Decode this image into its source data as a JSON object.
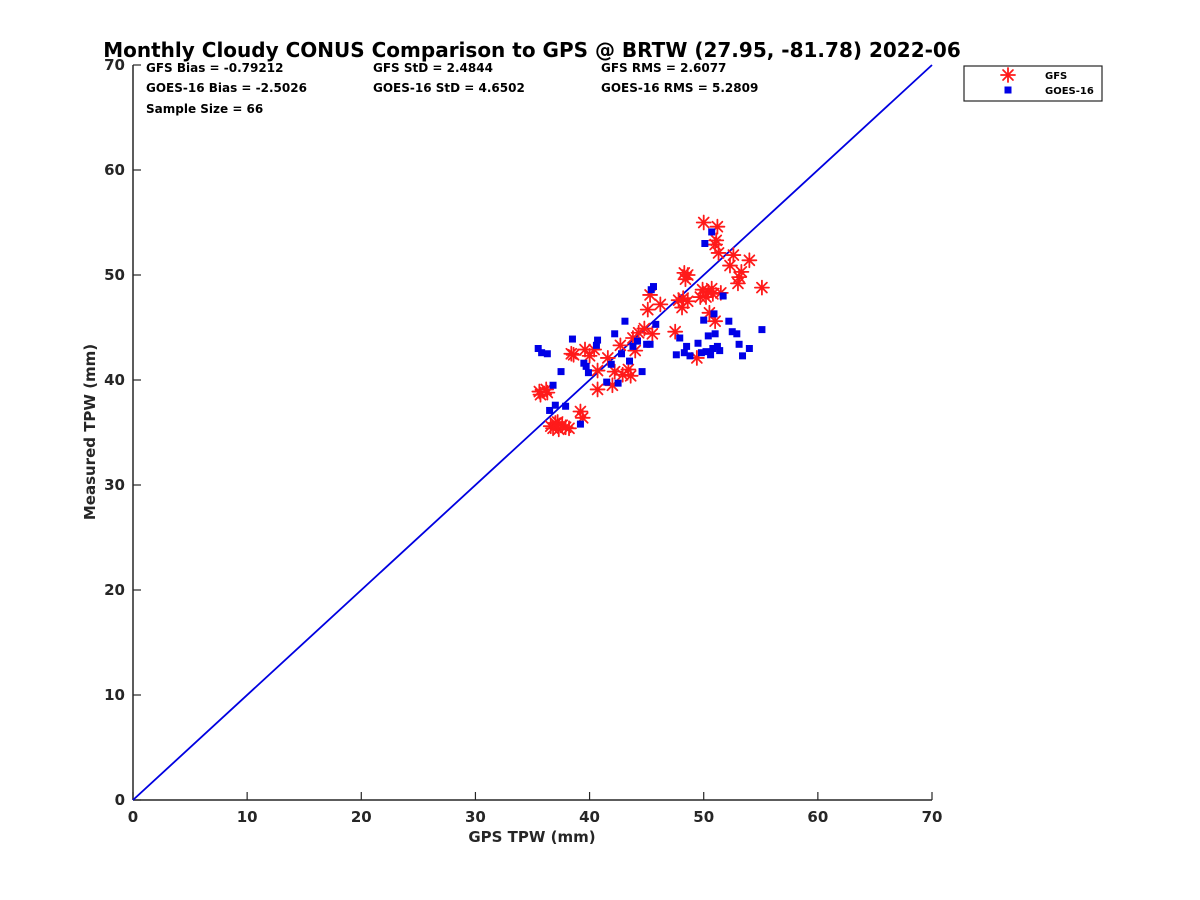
{
  "chart_data": {
    "type": "scatter",
    "title": "Monthly Cloudy CONUS Comparison to GPS @ BRTW (27.95, -81.78) 2022-06",
    "xlabel": "GPS TPW (mm)",
    "ylabel": "Measured TPW (mm)",
    "xlim": [
      0,
      70
    ],
    "ylim": [
      0,
      70
    ],
    "xticks": [
      "0",
      "10",
      "20",
      "30",
      "40",
      "50",
      "60",
      "70"
    ],
    "yticks": [
      "0",
      "10",
      "20",
      "30",
      "40",
      "50",
      "60",
      "70"
    ],
    "stats": {
      "gfs_bias": "GFS Bias = -0.79212",
      "gfs_std": "GFS StD = 2.4844",
      "gfs_rms": "GFS RMS = 2.6077",
      "goes_bias": "GOES-16 Bias = -2.5026",
      "goes_std": "GOES-16 StD = 4.6502",
      "goes_rms": "GOES-16 RMS = 5.2809",
      "sample_size": "Sample Size = 66"
    },
    "reference_line": {
      "name": "1:1",
      "x": [
        0,
        70
      ],
      "y": [
        0,
        70
      ],
      "color": "#0000e0"
    },
    "legend": {
      "placement": "outside-top-right",
      "entries": [
        "GFS",
        "GOES-16"
      ]
    },
    "series": [
      {
        "name": "GFS",
        "marker": "asterisk",
        "color": "#ff1a1a",
        "points": [
          [
            35.6,
            38.9
          ],
          [
            35.7,
            38.6
          ],
          [
            36.2,
            39.1
          ],
          [
            36.6,
            35.6
          ],
          [
            36.8,
            35.4
          ],
          [
            37.0,
            35.9
          ],
          [
            37.3,
            35.3
          ],
          [
            37.6,
            35.7
          ],
          [
            37.9,
            35.5
          ],
          [
            38.2,
            35.4
          ],
          [
            39.2,
            37.0
          ],
          [
            39.4,
            36.4
          ],
          [
            38.6,
            42.4
          ],
          [
            39.6,
            42.9
          ],
          [
            40.0,
            42.3
          ],
          [
            40.4,
            42.9
          ],
          [
            40.7,
            40.9
          ],
          [
            40.7,
            39.1
          ],
          [
            41.6,
            42.1
          ],
          [
            42.0,
            39.5
          ],
          [
            42.2,
            40.8
          ],
          [
            42.7,
            43.3
          ],
          [
            42.9,
            40.5
          ],
          [
            43.4,
            41.0
          ],
          [
            43.6,
            40.4
          ],
          [
            43.8,
            44.0
          ],
          [
            44.3,
            44.5
          ],
          [
            44.8,
            44.9
          ],
          [
            45.1,
            46.7
          ],
          [
            45.3,
            48.1
          ],
          [
            45.5,
            44.4
          ],
          [
            47.5,
            44.6
          ],
          [
            47.8,
            47.6
          ],
          [
            48.1,
            46.9
          ],
          [
            48.3,
            50.2
          ],
          [
            48.4,
            49.6
          ],
          [
            48.6,
            50.0
          ],
          [
            48.6,
            47.5
          ],
          [
            49.4,
            42.1
          ],
          [
            49.7,
            47.9
          ],
          [
            49.9,
            48.6
          ],
          [
            50.0,
            55.0
          ],
          [
            50.2,
            47.9
          ],
          [
            50.4,
            48.4
          ],
          [
            50.5,
            46.4
          ],
          [
            50.7,
            48.7
          ],
          [
            50.8,
            48.2
          ],
          [
            51.0,
            45.6
          ],
          [
            51.0,
            52.9
          ],
          [
            51.2,
            54.6
          ],
          [
            51.3,
            52.1
          ],
          [
            51.5,
            48.3
          ],
          [
            52.3,
            50.9
          ],
          [
            52.6,
            51.9
          ],
          [
            53.0,
            49.2
          ],
          [
            53.1,
            49.8
          ],
          [
            53.3,
            50.3
          ],
          [
            54.0,
            51.4
          ],
          [
            55.1,
            48.8
          ],
          [
            51.1,
            53.3
          ],
          [
            48.2,
            47.8
          ],
          [
            46.2,
            47.2
          ],
          [
            44.0,
            42.8
          ],
          [
            38.4,
            42.5
          ],
          [
            36.3,
            38.8
          ],
          [
            37.2,
            36.0
          ]
        ]
      },
      {
        "name": "GOES-16",
        "marker": "square",
        "color": "#0000e6",
        "points": [
          [
            35.5,
            43.0
          ],
          [
            35.8,
            42.6
          ],
          [
            36.3,
            42.5
          ],
          [
            36.5,
            37.1
          ],
          [
            36.8,
            39.5
          ],
          [
            37.0,
            37.6
          ],
          [
            37.5,
            40.8
          ],
          [
            37.9,
            37.5
          ],
          [
            38.5,
            43.9
          ],
          [
            39.2,
            35.8
          ],
          [
            39.5,
            41.6
          ],
          [
            39.7,
            41.3
          ],
          [
            39.9,
            40.7
          ],
          [
            40.6,
            43.3
          ],
          [
            40.7,
            43.8
          ],
          [
            41.5,
            39.8
          ],
          [
            41.9,
            41.5
          ],
          [
            42.2,
            44.4
          ],
          [
            42.5,
            39.7
          ],
          [
            42.8,
            42.5
          ],
          [
            43.1,
            45.6
          ],
          [
            43.5,
            41.8
          ],
          [
            43.8,
            43.2
          ],
          [
            44.2,
            43.7
          ],
          [
            44.6,
            40.8
          ],
          [
            45.0,
            43.4
          ],
          [
            45.3,
            43.4
          ],
          [
            45.4,
            48.6
          ],
          [
            45.6,
            48.9
          ],
          [
            45.8,
            45.3
          ],
          [
            47.6,
            42.4
          ],
          [
            47.9,
            44.0
          ],
          [
            48.3,
            42.6
          ],
          [
            48.5,
            43.2
          ],
          [
            48.8,
            42.3
          ],
          [
            49.5,
            43.5
          ],
          [
            49.8,
            42.6
          ],
          [
            50.0,
            45.7
          ],
          [
            50.1,
            53.0
          ],
          [
            50.2,
            42.7
          ],
          [
            50.4,
            44.2
          ],
          [
            50.6,
            42.4
          ],
          [
            50.7,
            54.1
          ],
          [
            50.8,
            43.0
          ],
          [
            50.9,
            46.3
          ],
          [
            51.0,
            44.4
          ],
          [
            51.2,
            43.2
          ],
          [
            51.4,
            42.8
          ],
          [
            51.7,
            48.0
          ],
          [
            52.2,
            45.6
          ],
          [
            52.5,
            44.6
          ],
          [
            52.9,
            44.4
          ],
          [
            53.1,
            43.4
          ],
          [
            53.4,
            42.3
          ],
          [
            54.0,
            43.0
          ],
          [
            55.1,
            44.8
          ]
        ]
      }
    ]
  }
}
